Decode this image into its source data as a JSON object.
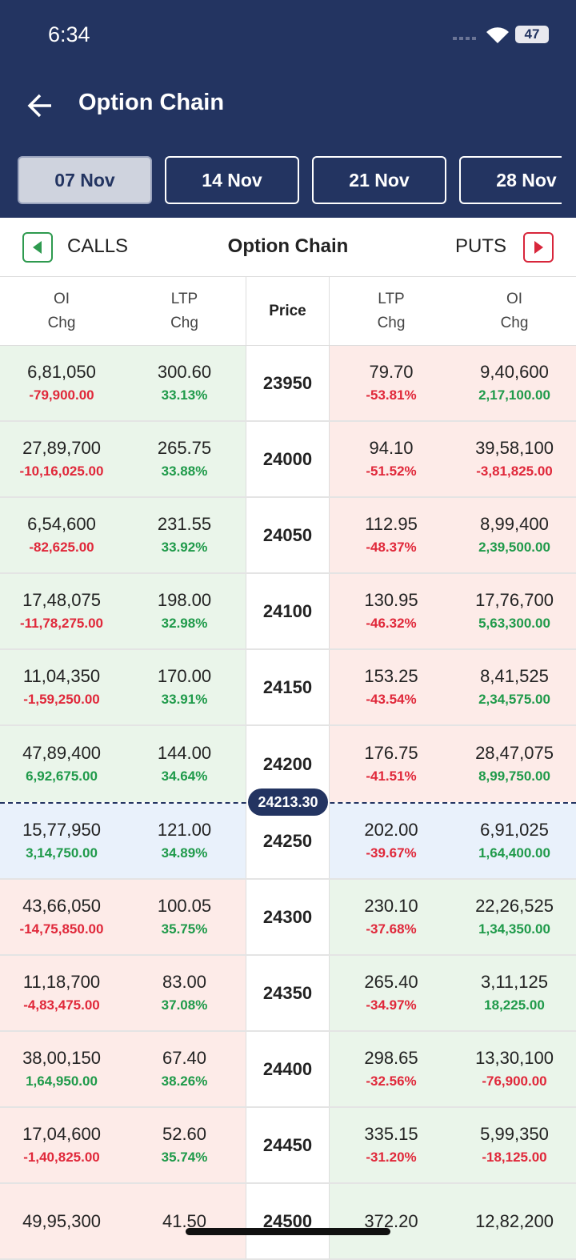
{
  "status": {
    "time": "6:34",
    "battery": "47"
  },
  "header": {
    "title": "Option Chain"
  },
  "tabs": [
    "07 Nov",
    "14 Nov",
    "21 Nov",
    "28 Nov"
  ],
  "section": {
    "calls": "CALLS",
    "title": "Option Chain",
    "puts": "PUTS"
  },
  "columns": [
    {
      "top": "OI",
      "bottom": "Chg"
    },
    {
      "top": "LTP",
      "bottom": "Chg"
    },
    {
      "top": "Price"
    },
    {
      "top": "LTP",
      "bottom": "Chg"
    },
    {
      "top": "OI",
      "bottom": "Chg"
    }
  ],
  "spot": "24213.30",
  "rows": [
    {
      "call_oi": "6,81,050",
      "call_oi_chg": "-79,900.00",
      "call_ltp": "300.60",
      "call_ltp_chg": "33.13%",
      "strike": "23950",
      "put_ltp": "79.70",
      "put_ltp_chg": "-53.81%",
      "put_oi": "9,40,600",
      "put_oi_chg": "2,17,100.00"
    },
    {
      "call_oi": "27,89,700",
      "call_oi_chg": "-10,16,025.00",
      "call_ltp": "265.75",
      "call_ltp_chg": "33.88%",
      "strike": "24000",
      "put_ltp": "94.10",
      "put_ltp_chg": "-51.52%",
      "put_oi": "39,58,100",
      "put_oi_chg": "-3,81,825.00"
    },
    {
      "call_oi": "6,54,600",
      "call_oi_chg": "-82,625.00",
      "call_ltp": "231.55",
      "call_ltp_chg": "33.92%",
      "strike": "24050",
      "put_ltp": "112.95",
      "put_ltp_chg": "-48.37%",
      "put_oi": "8,99,400",
      "put_oi_chg": "2,39,500.00"
    },
    {
      "call_oi": "17,48,075",
      "call_oi_chg": "-11,78,275.00",
      "call_ltp": "198.00",
      "call_ltp_chg": "32.98%",
      "strike": "24100",
      "put_ltp": "130.95",
      "put_ltp_chg": "-46.32%",
      "put_oi": "17,76,700",
      "put_oi_chg": "5,63,300.00"
    },
    {
      "call_oi": "11,04,350",
      "call_oi_chg": "-1,59,250.00",
      "call_ltp": "170.00",
      "call_ltp_chg": "33.91%",
      "strike": "24150",
      "put_ltp": "153.25",
      "put_ltp_chg": "-43.54%",
      "put_oi": "8,41,525",
      "put_oi_chg": "2,34,575.00"
    },
    {
      "call_oi": "47,89,400",
      "call_oi_chg": "6,92,675.00",
      "call_ltp": "144.00",
      "call_ltp_chg": "34.64%",
      "strike": "24200",
      "put_ltp": "176.75",
      "put_ltp_chg": "-41.51%",
      "put_oi": "28,47,075",
      "put_oi_chg": "8,99,750.00"
    },
    {
      "call_oi": "15,77,950",
      "call_oi_chg": "3,14,750.00",
      "call_ltp": "121.00",
      "call_ltp_chg": "34.89%",
      "strike": "24250",
      "put_ltp": "202.00",
      "put_ltp_chg": "-39.67%",
      "put_oi": "6,91,025",
      "put_oi_chg": "1,64,400.00"
    },
    {
      "call_oi": "43,66,050",
      "call_oi_chg": "-14,75,850.00",
      "call_ltp": "100.05",
      "call_ltp_chg": "35.75%",
      "strike": "24300",
      "put_ltp": "230.10",
      "put_ltp_chg": "-37.68%",
      "put_oi": "22,26,525",
      "put_oi_chg": "1,34,350.00"
    },
    {
      "call_oi": "11,18,700",
      "call_oi_chg": "-4,83,475.00",
      "call_ltp": "83.00",
      "call_ltp_chg": "37.08%",
      "strike": "24350",
      "put_ltp": "265.40",
      "put_ltp_chg": "-34.97%",
      "put_oi": "3,11,125",
      "put_oi_chg": "18,225.00"
    },
    {
      "call_oi": "38,00,150",
      "call_oi_chg": "1,64,950.00",
      "call_ltp": "67.40",
      "call_ltp_chg": "38.26%",
      "strike": "24400",
      "put_ltp": "298.65",
      "put_ltp_chg": "-32.56%",
      "put_oi": "13,30,100",
      "put_oi_chg": "-76,900.00"
    },
    {
      "call_oi": "17,04,600",
      "call_oi_chg": "-1,40,825.00",
      "call_ltp": "52.60",
      "call_ltp_chg": "35.74%",
      "strike": "24450",
      "put_ltp": "335.15",
      "put_ltp_chg": "-31.20%",
      "put_oi": "5,99,350",
      "put_oi_chg": "-18,125.00"
    },
    {
      "call_oi": "49,95,300",
      "call_ltp": "41.50",
      "strike": "24500",
      "put_ltp": "372.20",
      "put_oi": "12,82,200"
    }
  ]
}
